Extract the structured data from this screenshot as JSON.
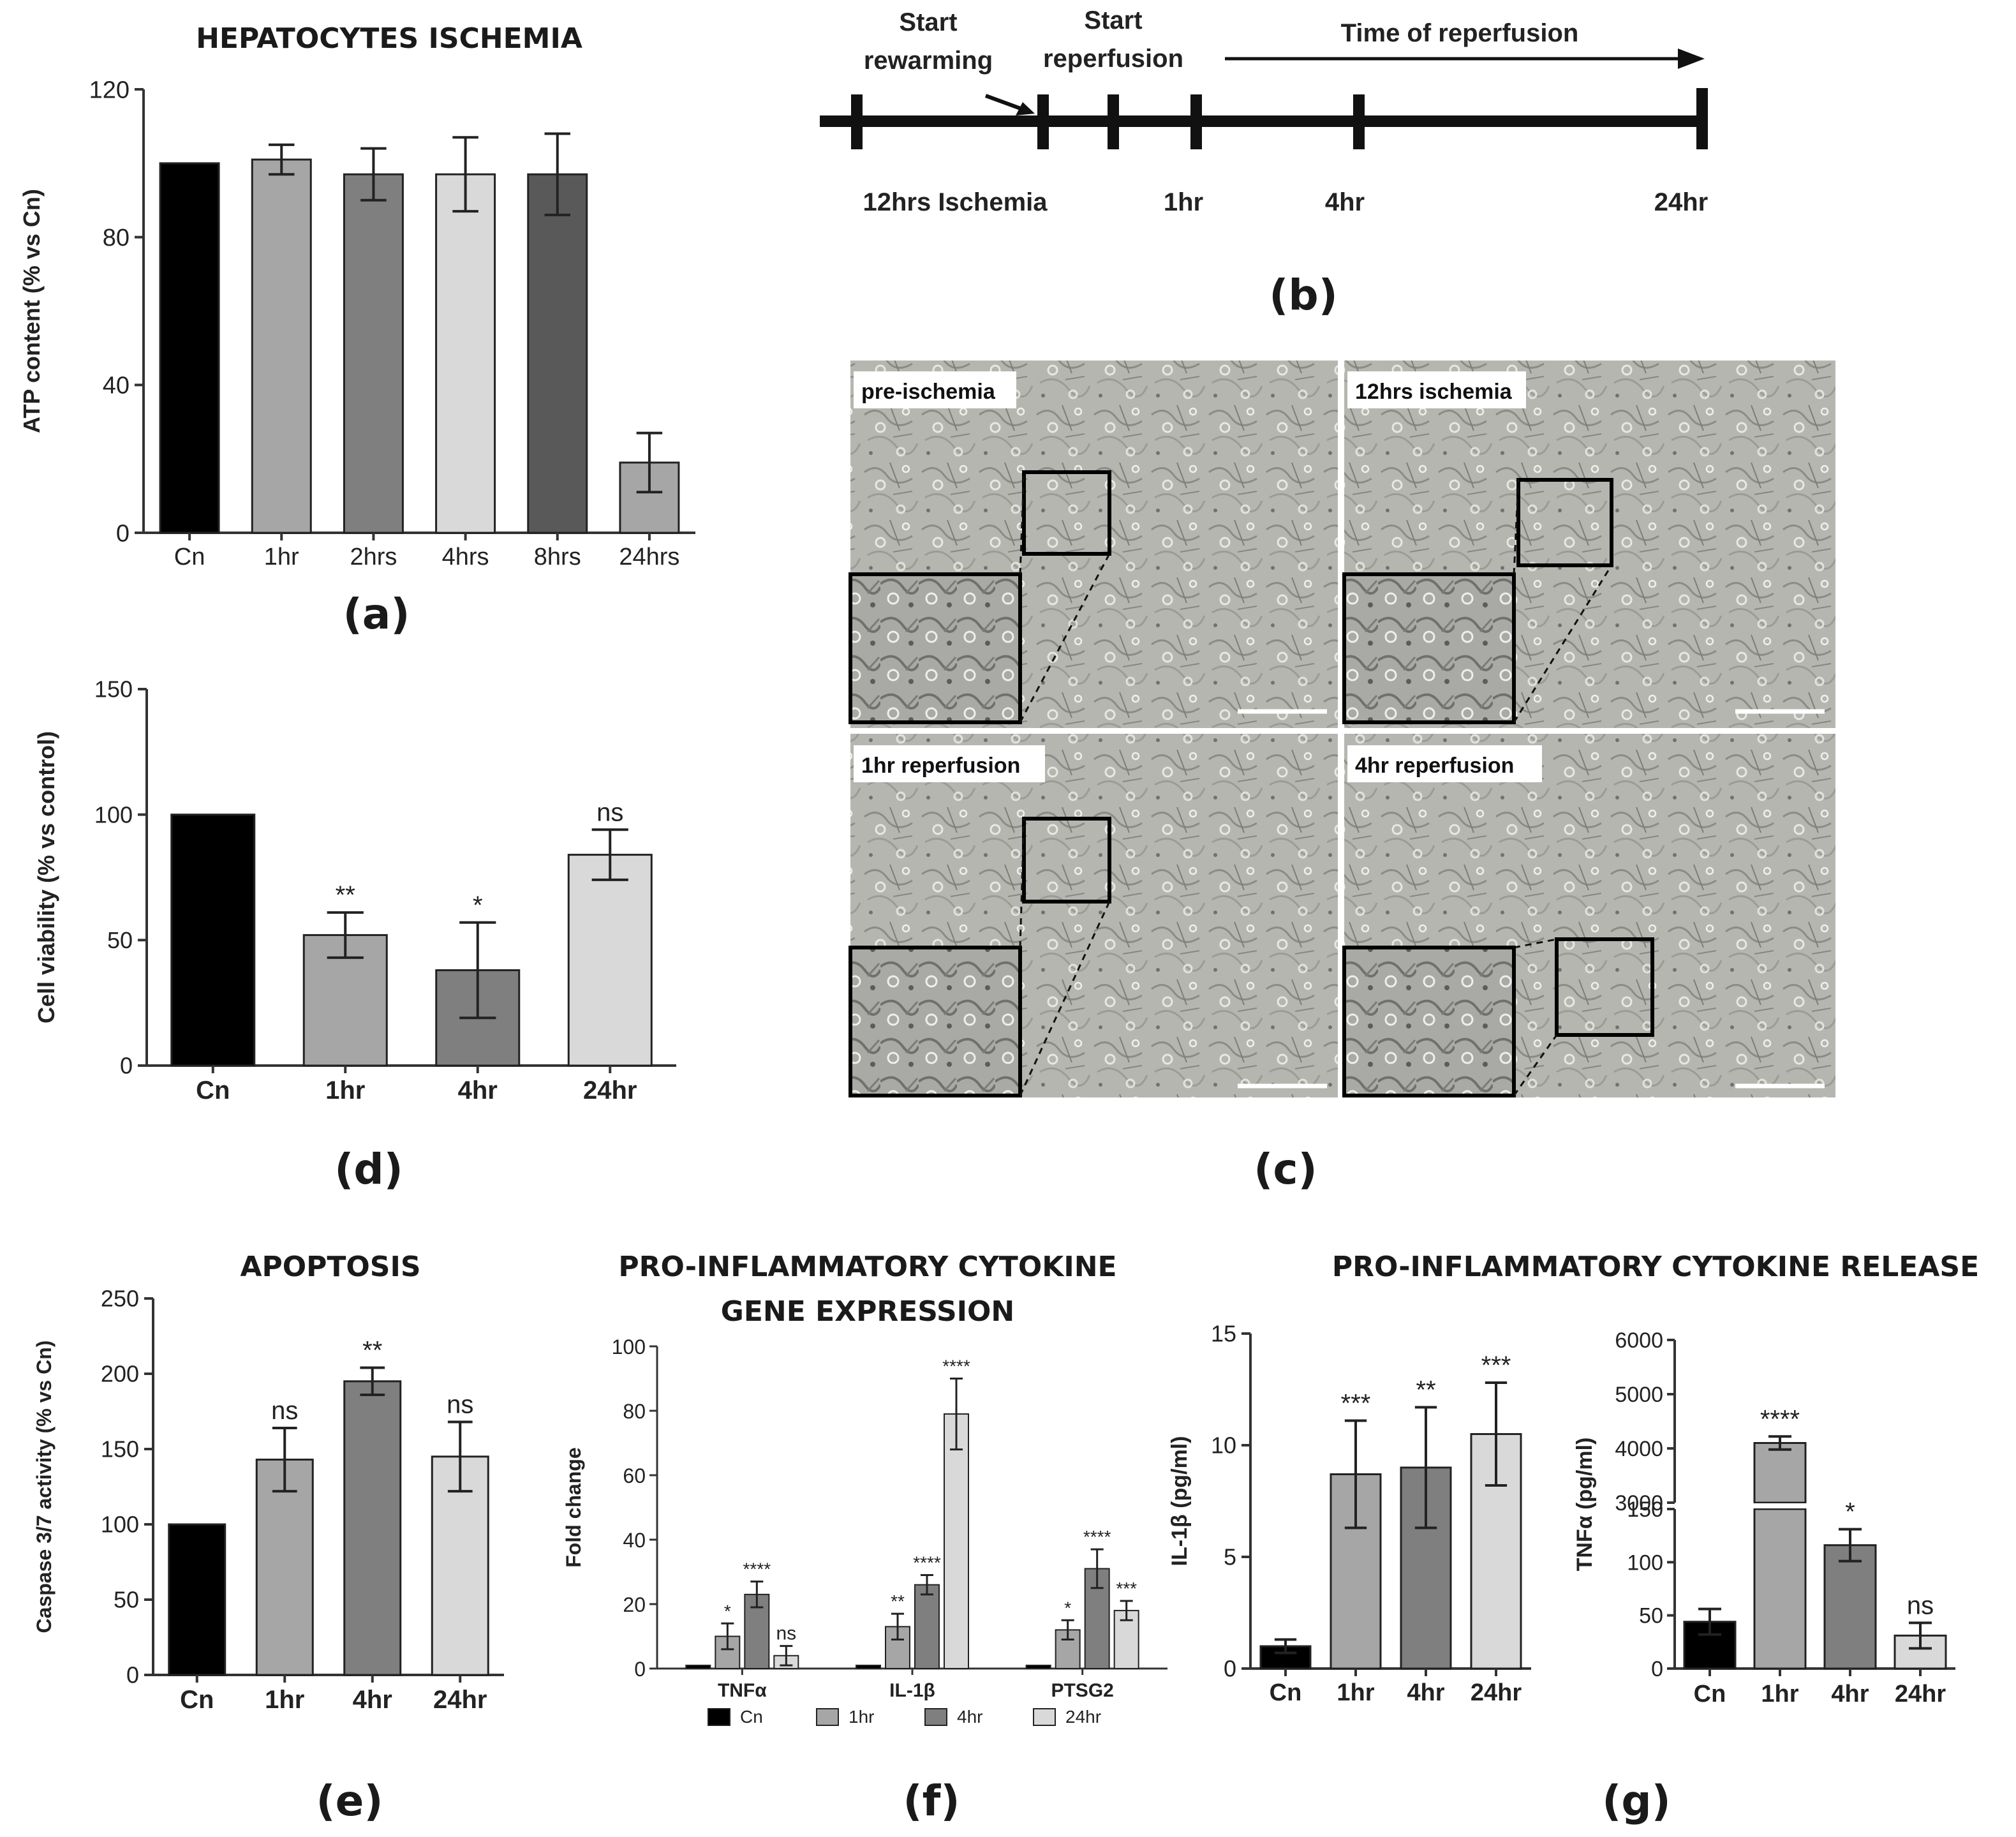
{
  "colors": {
    "cn": "#000000",
    "hr1": "#a6a6a6",
    "hr2": "#7f7f7f",
    "hr4": "#d9d9d9",
    "hr8": "#595959",
    "hr24": "#a6a6a6"
  },
  "panel_labels": {
    "a": "(a)",
    "b": "(b)",
    "c": "(c)",
    "d": "(d)",
    "e": "(e)",
    "f": "(f)",
    "g": "(g)"
  },
  "titles": {
    "g": "PRO-INFLAMMATORY CYTOKINE RELEASE"
  },
  "timeline": {
    "start_rewarming": [
      "Start",
      "rewarming"
    ],
    "start_reperfusion": [
      "Start",
      "reperfusion"
    ],
    "time_of_reperfusion": "Time of reperfusion",
    "bottom_labels": [
      "12hrs Ischemia",
      "1hr",
      "4hr",
      "24hr"
    ]
  },
  "micrographs": {
    "labels": [
      "pre-ischemia",
      "12hrs ischemia",
      "1hr reperfusion",
      "4hr reperfusion"
    ]
  },
  "chart_data": [
    {
      "id": "a",
      "type": "bar",
      "title": "HEPATOCYTES ISCHEMIA",
      "ylabel": "ATP content (% vs Cn)",
      "categories": [
        "Cn",
        "1hr",
        "2hrs",
        "4hrs",
        "8hrs",
        "24hrs"
      ],
      "values": [
        100,
        101,
        97,
        97,
        97,
        19
      ],
      "errors": [
        0,
        4,
        7,
        10,
        11,
        8
      ],
      "ylim": [
        0,
        120
      ],
      "yticks": [
        "0",
        "40",
        "80",
        "120"
      ],
      "significance": [
        "",
        "",
        "",
        "",
        "",
        ""
      ]
    },
    {
      "id": "d",
      "type": "bar",
      "title": "",
      "ylabel": "Cell viability (% vs control)",
      "categories": [
        "Cn",
        "1hr",
        "4hr",
        "24hr"
      ],
      "values": [
        100,
        52,
        38,
        84
      ],
      "errors": [
        0,
        9,
        19,
        10
      ],
      "ylim": [
        0,
        150
      ],
      "yticks": [
        "0",
        "50",
        "100",
        "150"
      ],
      "significance": [
        "",
        "**",
        "*",
        "ns"
      ]
    },
    {
      "id": "e",
      "type": "bar",
      "title": "APOPTOSIS",
      "ylabel": "Caspase 3/7 activity (% vs Cn)",
      "categories": [
        "Cn",
        "1hr",
        "4hr",
        "24hr"
      ],
      "values": [
        100,
        143,
        195,
        145
      ],
      "errors": [
        0,
        21,
        9,
        23
      ],
      "ylim": [
        0,
        250
      ],
      "yticks": [
        "0",
        "50",
        "100",
        "150",
        "200",
        "250"
      ],
      "significance": [
        "",
        "ns",
        "**",
        "ns"
      ]
    },
    {
      "id": "f",
      "type": "bar",
      "title": "PRO-INFLAMMATORY CYTOKINE GENE EXPRESSION",
      "title_lines": [
        "PRO-INFLAMMATORY CYTOKINE",
        "GENE EXPRESSION"
      ],
      "ylabel": "Fold change",
      "categories": [
        "TNFα",
        "IL-1β",
        "PTSG2"
      ],
      "series": [
        {
          "name": "Cn",
          "values": [
            1,
            1,
            1
          ],
          "errors": [
            0,
            0,
            0
          ],
          "significance": [
            "",
            "",
            ""
          ]
        },
        {
          "name": "1hr",
          "values": [
            10,
            13,
            12
          ],
          "errors": [
            4,
            4,
            3
          ],
          "significance": [
            "*",
            "**",
            "*"
          ]
        },
        {
          "name": "4hr",
          "values": [
            23,
            26,
            31
          ],
          "errors": [
            4,
            3,
            6
          ],
          "significance": [
            "****",
            "****",
            "****"
          ]
        },
        {
          "name": "24hr",
          "values": [
            4,
            79,
            18
          ],
          "errors": [
            3,
            11,
            3
          ],
          "significance": [
            "ns",
            "****",
            "***"
          ]
        }
      ],
      "ylim": [
        0,
        100
      ],
      "yticks": [
        "0",
        "20",
        "40",
        "60",
        "80",
        "100"
      ],
      "legend": "bottom"
    },
    {
      "id": "g1",
      "type": "bar",
      "title": "",
      "ylabel": "IL-1β (pg/ml)",
      "categories": [
        "Cn",
        "1hr",
        "4hr",
        "24hr"
      ],
      "values": [
        1.0,
        8.7,
        9.0,
        10.5
      ],
      "errors": [
        0.3,
        2.4,
        2.7,
        2.3
      ],
      "ylim": [
        0,
        15
      ],
      "yticks": [
        "0",
        "5",
        "10",
        "15"
      ],
      "significance": [
        "",
        "***",
        "**",
        "***"
      ]
    },
    {
      "id": "g2",
      "type": "bar",
      "title": "",
      "ylabel": "TNFα (pg/ml)",
      "categories": [
        "Cn",
        "1hr",
        "4hr",
        "24hr"
      ],
      "values": [
        44,
        4100,
        116,
        31
      ],
      "errors": [
        12,
        120,
        15,
        12
      ],
      "ylim": [
        0,
        6000
      ],
      "axis_break": [
        150,
        3000
      ],
      "yticks_lower": [
        "0",
        "50",
        "100",
        "150"
      ],
      "yticks_upper": [
        "3000",
        "4000",
        "5000",
        "6000"
      ],
      "significance": [
        "",
        "****",
        "*",
        "ns"
      ]
    }
  ]
}
